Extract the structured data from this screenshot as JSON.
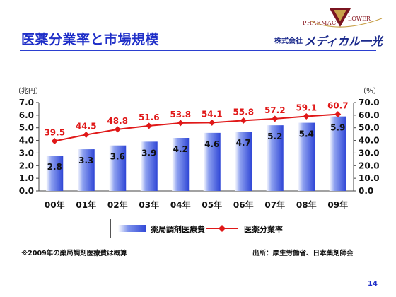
{
  "slide": {
    "title": "医薬分業率と市場規模",
    "page_number": "14",
    "note": "※2009年の薬局調剤医療費は概算",
    "source": "出所：厚生労働省、日本薬剤師会"
  },
  "logo": {
    "pharmac": "PHARMAC",
    "flower": "LOWER",
    "company_prefix": "株式会社",
    "company_name": "メディカル一光"
  },
  "chart_data": {
    "type": "bar+line",
    "categories": [
      "00年",
      "01年",
      "02年",
      "03年",
      "04年",
      "05年",
      "06年",
      "07年",
      "08年",
      "09年"
    ],
    "left_axis": {
      "unit": "（兆円）",
      "ylim": [
        0,
        7
      ],
      "ticks": [
        "0.0",
        "1.0",
        "2.0",
        "3.0",
        "4.0",
        "5.0",
        "6.0",
        "7.0"
      ]
    },
    "right_axis": {
      "unit": "（％）",
      "ylim": [
        0,
        70
      ],
      "ticks": [
        "0.0",
        "10.0",
        "20.0",
        "30.0",
        "40.0",
        "50.0",
        "60.0",
        "70.0"
      ]
    },
    "series": [
      {
        "name": "薬局調剤医療費",
        "type": "bar",
        "axis": "left",
        "color": "#2f46d6",
        "values": [
          2.8,
          3.3,
          3.6,
          3.9,
          4.2,
          4.6,
          4.7,
          5.2,
          5.4,
          5.9
        ],
        "labels": [
          "2.8",
          "3.3",
          "3.6",
          "3.9",
          "4.2",
          "4.6",
          "4.7",
          "5.2",
          "5.4",
          "5.9"
        ]
      },
      {
        "name": "医薬分業率",
        "type": "line",
        "axis": "right",
        "color": "#e01818",
        "values": [
          39.5,
          44.5,
          48.8,
          51.6,
          53.8,
          54.1,
          55.8,
          57.2,
          59.1,
          60.7
        ],
        "labels": [
          "39.5",
          "44.5",
          "48.8",
          "51.6",
          "53.8",
          "54.1",
          "55.8",
          "57.2",
          "59.1",
          "60.7"
        ]
      }
    ],
    "grid": false,
    "legend": "bottom"
  }
}
